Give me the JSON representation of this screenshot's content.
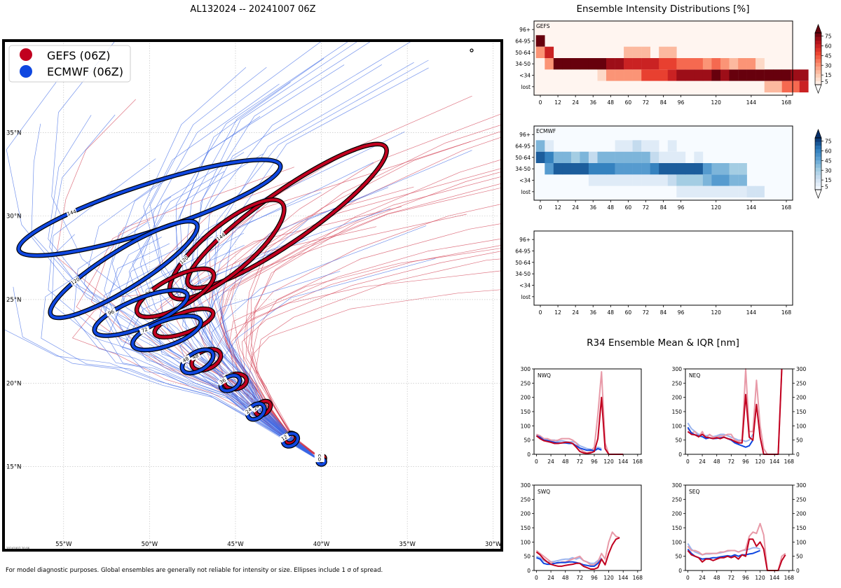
{
  "figure": {
    "main_title": "AL132024 -- 20241007 06Z",
    "intensity_title": "Ensemble Intensity Distributions [%]",
    "r34_title": "R34 Ensemble Mean & IQR [nm]",
    "footnote": "For model diagnostic purposes. Global ensembles are generally not reliable for intensity or size. Ellipses include 1 σ of spread.",
    "map_timestamp": "20241007 20:06"
  },
  "colors": {
    "gefs": "#c1001f",
    "ecmwf": "#0f47e0",
    "gefs_light": "#e89aa8",
    "ecmwf_light": "#9bb5ee"
  },
  "chart_data": [
    {
      "id": "track_map",
      "type": "scatter",
      "title": "AL132024 -- 20241007 06Z",
      "legend": {
        "placement": "top-left",
        "entries": [
          "GEFS (06Z)",
          "ECMWF (06Z)"
        ]
      },
      "x_ticks": [
        {
          "value": -55,
          "label": "55°W"
        },
        {
          "value": -50,
          "label": "50°W"
        },
        {
          "value": -45,
          "label": "45°W"
        },
        {
          "value": -40,
          "label": "40°W"
        },
        {
          "value": -35,
          "label": "35°W"
        },
        {
          "value": -30,
          "label": "30°W"
        }
      ],
      "y_ticks": [
        {
          "value": 15,
          "label": "15°N"
        },
        {
          "value": 20,
          "label": "20°N"
        },
        {
          "value": 25,
          "label": "25°N"
        },
        {
          "value": 30,
          "label": "30°N"
        },
        {
          "value": 35,
          "label": "35°N"
        }
      ],
      "xlim": [
        -58.5,
        -29.5
      ],
      "ylim": [
        10,
        40.5
      ],
      "series": [
        {
          "name": "GEFS (06Z)",
          "ellipses": [
            {
              "hour": 0,
              "lon": -40.0,
              "lat": 15.5,
              "a": 0.15,
              "b": 0.1,
              "rot": 0
            },
            {
              "hour": 12,
              "lon": -41.8,
              "lat": 16.7,
              "a": 0.35,
              "b": 0.3,
              "rot": -30
            },
            {
              "hour": 24,
              "lon": -43.4,
              "lat": 18.5,
              "a": 0.5,
              "b": 0.35,
              "rot": -40
            },
            {
              "hour": 36,
              "lon": -45.0,
              "lat": 20.1,
              "a": 0.65,
              "b": 0.45,
              "rot": -10
            },
            {
              "hour": 48,
              "lon": -46.7,
              "lat": 21.4,
              "a": 0.9,
              "b": 0.55,
              "rot": -25
            },
            {
              "hour": 72,
              "lon": -48.0,
              "lat": 23.6,
              "a": 1.8,
              "b": 0.6,
              "rot": -20
            },
            {
              "hour": 96,
              "lon": -48.5,
              "lat": 25.4,
              "a": 2.5,
              "b": 0.9,
              "rot": -28
            },
            {
              "hour": 120,
              "lon": -45.5,
              "lat": 28.0,
              "a": 4.2,
              "b": 1.4,
              "rot": -40
            },
            {
              "hour": 144,
              "lon": -42.0,
              "lat": 30.0,
              "a": 7.0,
              "b": 1.5,
              "rot": -35
            }
          ]
        },
        {
          "name": "ECMWF (06Z)",
          "ellipses": [
            {
              "hour": 0,
              "lon": -40.0,
              "lat": 15.3,
              "a": 0.2,
              "b": 0.15,
              "rot": 0
            },
            {
              "hour": 12,
              "lon": -41.8,
              "lat": 16.6,
              "a": 0.45,
              "b": 0.35,
              "rot": -30
            },
            {
              "hour": 24,
              "lon": -43.8,
              "lat": 18.3,
              "a": 0.55,
              "b": 0.4,
              "rot": -40
            },
            {
              "hour": 36,
              "lon": -45.3,
              "lat": 20.0,
              "a": 0.6,
              "b": 0.4,
              "rot": -30
            },
            {
              "hour": 48,
              "lon": -47.2,
              "lat": 21.3,
              "a": 1.0,
              "b": 0.55,
              "rot": -30
            },
            {
              "hour": 72,
              "lon": -49.0,
              "lat": 23.0,
              "a": 2.1,
              "b": 0.75,
              "rot": -20
            },
            {
              "hour": 96,
              "lon": -50.5,
              "lat": 24.2,
              "a": 2.9,
              "b": 0.85,
              "rot": -22
            },
            {
              "hour": 120,
              "lon": -51.5,
              "lat": 26.8,
              "a": 5.0,
              "b": 1.15,
              "rot": -32
            },
            {
              "hour": 144,
              "lon": -50.0,
              "lat": 30.5,
              "a": 8.0,
              "b": 1.4,
              "rot": -18
            }
          ]
        }
      ]
    },
    {
      "id": "intensity_gefs",
      "type": "heatmap",
      "label": "GEFS",
      "y_categories": [
        "lost",
        "<34",
        "34-50",
        "50-64",
        "64-95",
        "96+"
      ],
      "x_ticks": [
        0,
        12,
        24,
        36,
        48,
        60,
        72,
        84,
        96,
        120,
        144,
        168
      ],
      "step_hours": 6,
      "colorbar_ticks": [
        5,
        15,
        30,
        45,
        60,
        75
      ],
      "matrix": [
        [
          0,
          0,
          0,
          0,
          0,
          0,
          0,
          0,
          0,
          0,
          0,
          0,
          0,
          0,
          0,
          0,
          0,
          0,
          0,
          0,
          0,
          0,
          0,
          0,
          0,
          0,
          20,
          20,
          40,
          40,
          60
        ],
        [
          0,
          0,
          0,
          0,
          0,
          0,
          0,
          10,
          30,
          30,
          30,
          30,
          50,
          50,
          50,
          60,
          70,
          70,
          70,
          70,
          80,
          70,
          80,
          80,
          80,
          80,
          80,
          80,
          80,
          70,
          70
        ],
        [
          0,
          30,
          80,
          80,
          80,
          80,
          80,
          80,
          70,
          70,
          60,
          60,
          60,
          60,
          50,
          50,
          40,
          40,
          40,
          30,
          40,
          30,
          20,
          30,
          30,
          10,
          0,
          0,
          0,
          0,
          0
        ],
        [
          30,
          60,
          0,
          0,
          0,
          0,
          0,
          0,
          0,
          0,
          20,
          20,
          20,
          0,
          20,
          20,
          0,
          0,
          0,
          0,
          0,
          0,
          0,
          0,
          0,
          0,
          0,
          0,
          0,
          0,
          0
        ],
        [
          80,
          0,
          0,
          0,
          0,
          0,
          0,
          0,
          0,
          0,
          0,
          0,
          0,
          0,
          0,
          0,
          0,
          0,
          0,
          0,
          0,
          0,
          0,
          0,
          0,
          0,
          0,
          0,
          0,
          0,
          0
        ],
        [
          0,
          0,
          0,
          0,
          0,
          0,
          0,
          0,
          0,
          0,
          0,
          0,
          0,
          0,
          0,
          0,
          0,
          0,
          0,
          0,
          0,
          0,
          0,
          0,
          0,
          0,
          0,
          0,
          0,
          0,
          0
        ]
      ]
    },
    {
      "id": "intensity_ecmwf",
      "type": "heatmap",
      "label": "ECMWF",
      "y_categories": [
        "lost",
        "<34",
        "34-50",
        "50-64",
        "64-95",
        "96+"
      ],
      "x_ticks": [
        0,
        12,
        24,
        36,
        48,
        60,
        72,
        84,
        96,
        120,
        144,
        168
      ],
      "step_hours": 6,
      "colorbar_ticks": [
        5,
        15,
        30,
        45,
        60,
        75
      ],
      "matrix": [
        [
          0,
          0,
          0,
          0,
          0,
          0,
          0,
          0,
          0,
          0,
          0,
          0,
          0,
          0,
          0,
          0,
          10,
          10,
          10,
          10,
          10,
          10,
          10,
          10,
          15,
          15,
          0,
          0,
          0,
          0,
          0
        ],
        [
          0,
          0,
          0,
          0,
          0,
          0,
          10,
          10,
          10,
          10,
          10,
          10,
          10,
          10,
          10,
          20,
          30,
          30,
          30,
          40,
          50,
          50,
          40,
          40,
          0,
          0,
          0,
          0,
          0,
          0,
          0
        ],
        [
          0,
          50,
          70,
          70,
          70,
          70,
          60,
          60,
          60,
          50,
          50,
          50,
          50,
          60,
          70,
          70,
          70,
          70,
          70,
          50,
          40,
          40,
          30,
          30,
          0,
          0,
          0,
          0,
          0,
          0,
          0
        ],
        [
          70,
          60,
          40,
          40,
          30,
          40,
          20,
          40,
          40,
          40,
          40,
          40,
          40,
          20,
          10,
          10,
          10,
          0,
          10,
          0,
          0,
          0,
          0,
          0,
          0,
          0,
          0,
          0,
          0,
          0,
          0
        ],
        [
          40,
          10,
          0,
          0,
          0,
          0,
          0,
          0,
          0,
          10,
          10,
          20,
          10,
          10,
          0,
          10,
          0,
          0,
          0,
          0,
          0,
          0,
          0,
          0,
          0,
          0,
          0,
          0,
          0,
          0,
          0
        ],
        [
          0,
          0,
          0,
          0,
          0,
          0,
          0,
          0,
          0,
          0,
          0,
          0,
          0,
          0,
          0,
          0,
          0,
          0,
          0,
          0,
          0,
          0,
          0,
          0,
          0,
          0,
          0,
          0,
          0,
          0,
          0
        ]
      ]
    },
    {
      "id": "intensity_empty",
      "type": "heatmap",
      "label": "",
      "y_categories": [
        "lost",
        "<34",
        "34-50",
        "50-64",
        "64-95",
        "96+"
      ],
      "x_ticks": [
        0,
        12,
        24,
        36,
        48,
        60,
        72,
        84,
        96,
        120,
        144,
        168
      ],
      "matrix": []
    },
    {
      "id": "r34",
      "type": "line",
      "title": "R34 Ensemble Mean & IQR [nm]",
      "x_ticks": [
        0,
        24,
        48,
        72,
        96,
        120,
        144,
        168
      ],
      "y_ticks": [
        0,
        50,
        100,
        150,
        200,
        250,
        300
      ],
      "ylim": [
        0,
        300
      ],
      "xlim": [
        -4,
        174
      ],
      "step_hours": 6,
      "panels": [
        {
          "label": "NWQ",
          "gefs_mean": [
            65,
            55,
            48,
            45,
            42,
            38,
            38,
            40,
            42,
            42,
            38,
            25,
            10,
            5,
            3,
            5,
            10,
            55,
            200,
            20,
            0,
            0,
            0,
            0,
            0
          ],
          "gefs_iqr": [
            70,
            65,
            55,
            55,
            50,
            48,
            50,
            55,
            55,
            55,
            50,
            40,
            20,
            10,
            5,
            10,
            25,
            140,
            290,
            40,
            0,
            0,
            0,
            0,
            0
          ],
          "ecmwf_mean": [
            65,
            60,
            50,
            48,
            45,
            42,
            40,
            40,
            40,
            38,
            38,
            30,
            22,
            18,
            14,
            15,
            12,
            20,
            15
          ],
          "ecmwf_iqr": [
            70,
            65,
            55,
            52,
            50,
            50,
            45,
            48,
            45,
            42,
            45,
            40,
            30,
            25,
            20,
            18,
            15,
            25,
            20
          ]
        },
        {
          "label": "NEQ",
          "gefs_mean": [
            80,
            70,
            68,
            62,
            70,
            60,
            58,
            55,
            58,
            55,
            60,
            55,
            52,
            45,
            40,
            40,
            210,
            60,
            50,
            175,
            60,
            0,
            0,
            0,
            0,
            0,
            300
          ],
          "gefs_iqr": [
            90,
            75,
            80,
            60,
            80,
            55,
            70,
            60,
            60,
            65,
            65,
            70,
            70,
            50,
            45,
            50,
            300,
            80,
            80,
            260,
            100,
            20,
            0,
            0,
            0,
            0,
            300
          ],
          "ecmwf_mean": [
            95,
            75,
            68,
            65,
            62,
            55,
            58,
            55,
            56,
            58,
            60,
            55,
            50,
            40,
            35,
            30,
            25,
            30,
            50
          ],
          "ecmwf_iqr": [
            110,
            90,
            80,
            70,
            70,
            65,
            68,
            62,
            65,
            70,
            70,
            65,
            60,
            55,
            50,
            50,
            45,
            50,
            70
          ]
        },
        {
          "label": "SWQ",
          "gefs_mean": [
            65,
            55,
            40,
            30,
            22,
            18,
            15,
            15,
            18,
            20,
            22,
            25,
            25,
            15,
            10,
            5,
            5,
            10,
            40,
            20,
            60,
            90,
            110,
            115
          ],
          "gefs_iqr": [
            70,
            60,
            50,
            40,
            30,
            25,
            25,
            30,
            30,
            35,
            40,
            45,
            50,
            35,
            30,
            20,
            20,
            30,
            60,
            40,
            100,
            135,
            120,
            115
          ],
          "ecmwf_mean": [
            45,
            40,
            25,
            22,
            22,
            25,
            28,
            28,
            28,
            30,
            30,
            28,
            25,
            20,
            18,
            15,
            15,
            25,
            40
          ],
          "ecmwf_iqr": [
            50,
            45,
            35,
            30,
            30,
            32,
            35,
            38,
            40,
            40,
            45,
            40,
            45,
            35,
            30,
            25,
            25,
            35,
            45
          ]
        },
        {
          "label": "SEQ",
          "gefs_mean": [
            70,
            55,
            50,
            45,
            30,
            40,
            40,
            35,
            40,
            45,
            45,
            50,
            45,
            50,
            40,
            55,
            50,
            110,
            110,
            85,
            100,
            75,
            0,
            0,
            0,
            0,
            35,
            55
          ],
          "gefs_iqr": [
            85,
            70,
            70,
            65,
            55,
            60,
            60,
            60,
            60,
            65,
            65,
            70,
            70,
            70,
            65,
            70,
            75,
            120,
            135,
            130,
            165,
            125,
            0,
            0,
            0,
            0,
            50,
            60
          ],
          "ecmwf_mean": [
            75,
            60,
            50,
            45,
            40,
            42,
            42,
            45,
            45,
            48,
            50,
            52,
            50,
            55,
            50,
            55,
            55,
            58,
            60,
            65,
            70
          ],
          "ecmwf_iqr": [
            95,
            75,
            65,
            60,
            55,
            58,
            58,
            60,
            60,
            62,
            65,
            68,
            70,
            70,
            65,
            70,
            72,
            75,
            80,
            80,
            75
          ]
        }
      ]
    }
  ]
}
